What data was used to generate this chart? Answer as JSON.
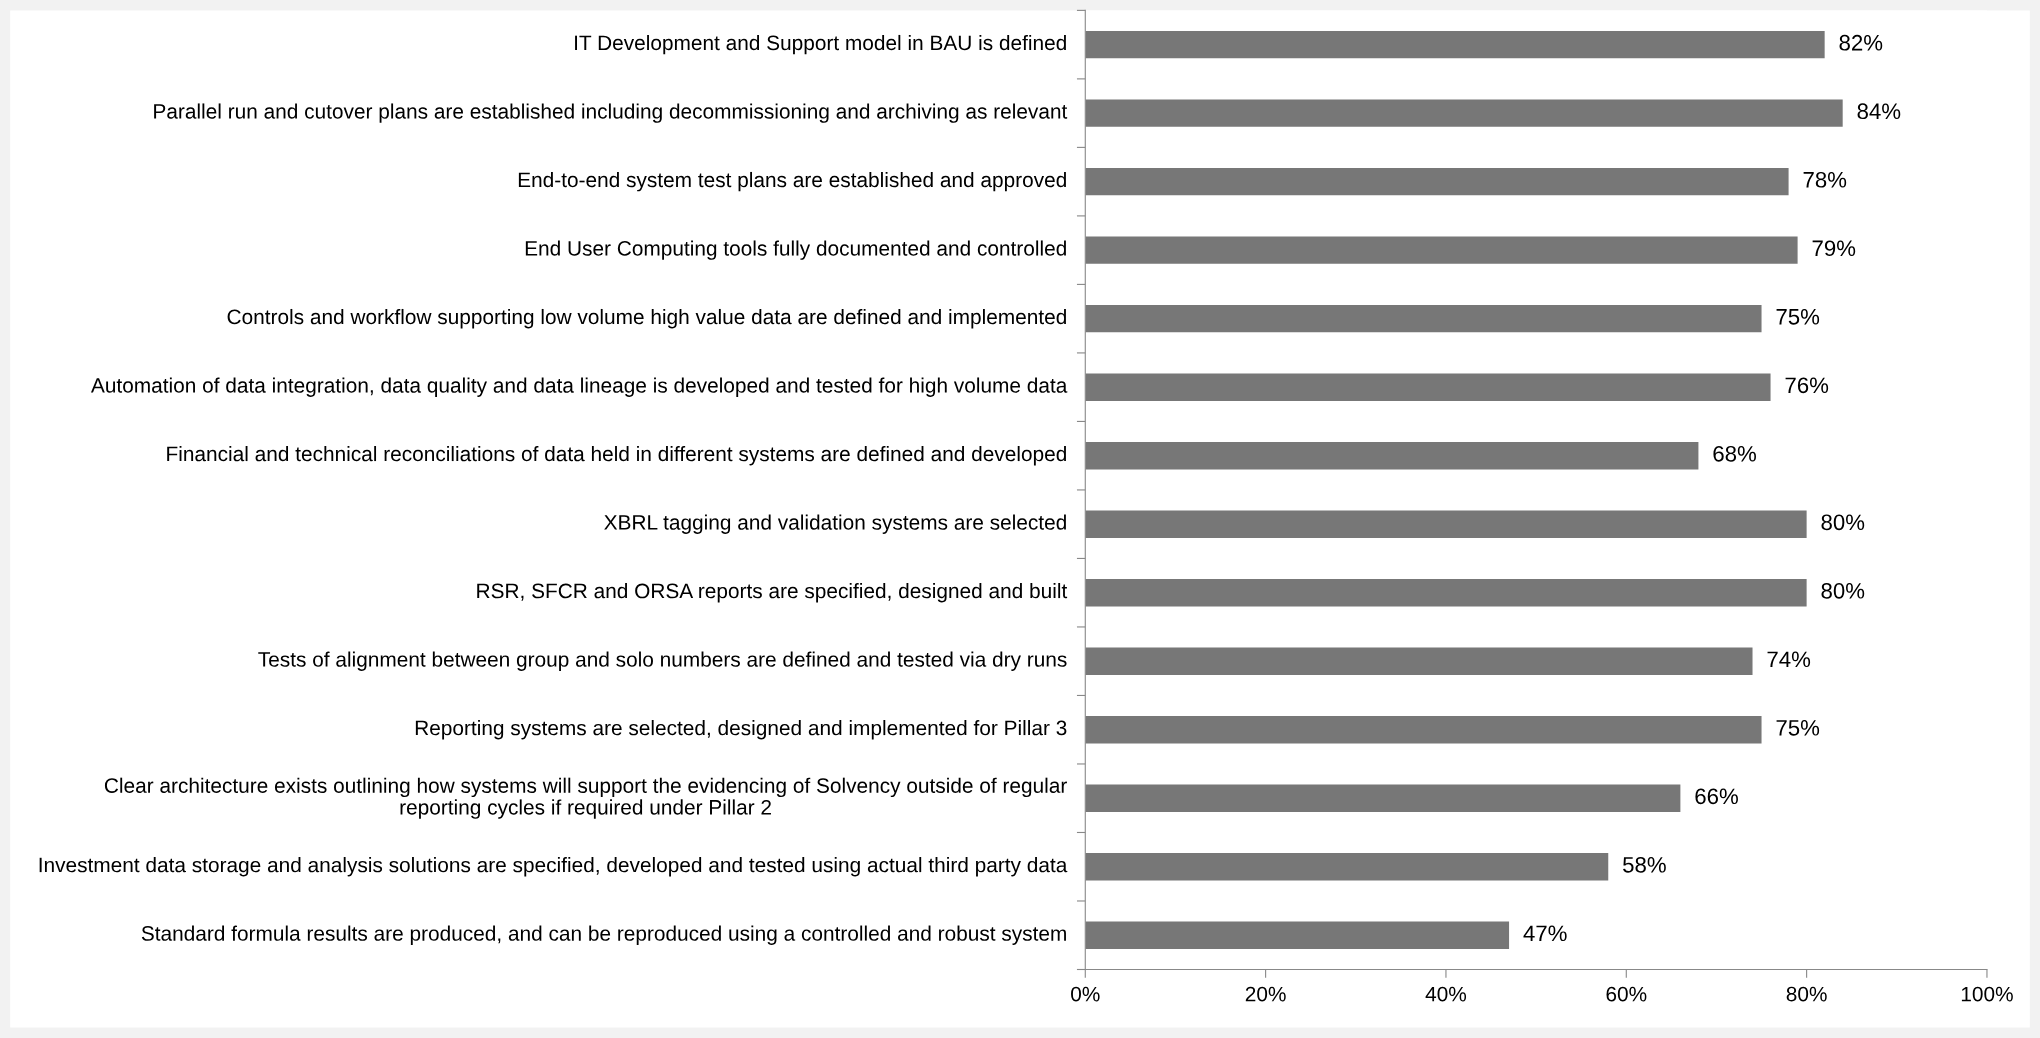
{
  "chart_data": {
    "type": "bar",
    "orientation": "horizontal",
    "categories": [
      "IT Development and Support model in BAU is defined",
      "Parallel run and cutover plans are established including decommissioning and archiving as relevant",
      "End-to-end system test plans are established and approved",
      "End User Computing tools fully documented and controlled",
      "Controls and workflow supporting low volume high value data are defined and implemented",
      "Automation of data integration, data quality and data lineage is developed and tested for high volume data",
      "Financial and technical reconciliations of data held in different systems are defined and developed",
      "XBRL tagging and validation systems are selected",
      "RSR, SFCR and ORSA reports are specified, designed and built",
      "Tests of alignment between group and solo numbers are defined and tested via dry runs",
      "Reporting systems are selected, designed and implemented for Pillar 3",
      "Clear architecture exists outlining how systems will support the evidencing of Solvency outside of regular reporting cycles if required under Pillar 2",
      "Investment data storage and analysis solutions are specified, developed and tested using actual third party data",
      "Standard formula results are produced, and can be reproduced using a controlled and robust system"
    ],
    "values": [
      82,
      84,
      78,
      79,
      75,
      76,
      68,
      80,
      80,
      74,
      75,
      66,
      58,
      47
    ],
    "value_labels": [
      "82%",
      "84%",
      "78%",
      "79%",
      "75%",
      "76%",
      "68%",
      "80%",
      "80%",
      "74%",
      "75%",
      "66%",
      "58%",
      "47%"
    ],
    "color": "#777777",
    "xlim": [
      0,
      100
    ],
    "xticks": [
      {
        "value": 0,
        "label": "0%"
      },
      {
        "value": 20,
        "label": "20%"
      },
      {
        "value": 40,
        "label": "40%"
      },
      {
        "value": 60,
        "label": "60%"
      },
      {
        "value": 80,
        "label": "80%"
      },
      {
        "value": 100,
        "label": "100%"
      }
    ],
    "grid": false,
    "legend": false
  }
}
